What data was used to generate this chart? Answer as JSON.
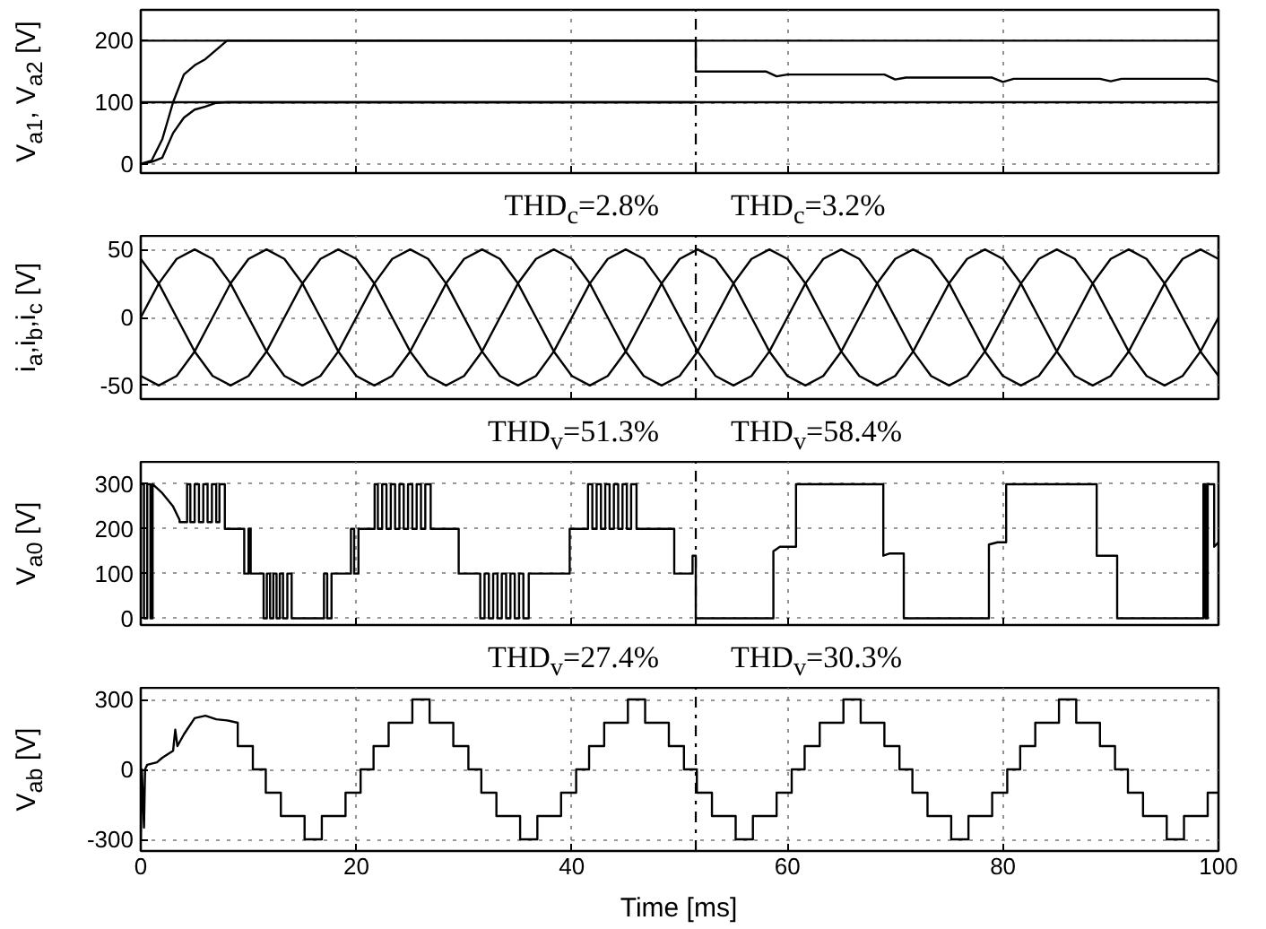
{
  "chart_data": [
    {
      "type": "line",
      "ylabel": "V$_{a1}$, V$_{a2}$ [V]",
      "xlim": [
        0,
        100
      ],
      "xticks": [
        0,
        20,
        40,
        60,
        80,
        100
      ],
      "ylim": [
        -15,
        250
      ],
      "yticks": [
        0,
        100,
        200
      ],
      "grid": true,
      "tick_labels": "y",
      "series": [
        {
          "color": "#000000",
          "x": [
            0,
            1,
            2,
            3,
            4,
            5,
            6,
            7,
            8,
            20,
            30,
            40,
            51.5,
            51.5,
            58,
            59,
            60,
            69,
            70,
            71,
            79,
            80,
            81,
            89,
            90,
            91,
            99,
            100
          ],
          "values": [
            0,
            5,
            40,
            100,
            145,
            160,
            170,
            185,
            200,
            200,
            200,
            200,
            200,
            150,
            150,
            142,
            145,
            145,
            137,
            140,
            140,
            133,
            138,
            138,
            134,
            138,
            138,
            133
          ]
        },
        {
          "color": "#000000",
          "x": [
            0,
            1,
            2,
            3,
            4,
            5,
            6,
            7,
            8,
            20,
            30,
            40,
            51.5
          ],
          "values": [
            0,
            3,
            10,
            50,
            75,
            88,
            93,
            99,
            100,
            100,
            100,
            100,
            100
          ]
        },
        {
          "color": "#000000",
          "x": [
            0,
            100
          ],
          "values": [
            100,
            100
          ]
        },
        {
          "color": "#000000",
          "x": [
            0,
            100
          ],
          "values": [
            200,
            200
          ]
        }
      ],
      "ref_lines": [
        {
          "axis": "x",
          "value": 51.5,
          "color": "#000000",
          "line_style": "dashdot"
        }
      ],
      "annotations": [
        "THD$_{c}$=2.8%",
        "THD$_{c}$=3.2%"
      ]
    },
    {
      "type": "line",
      "ylabel": "i$_{a}$,i$_{b}$,i$_{c}$ [V]",
      "xlim": [
        0,
        100
      ],
      "xticks": [
        0,
        20,
        40,
        60,
        80,
        100
      ],
      "ylim": [
        -60,
        60
      ],
      "yticks": [
        -50,
        0,
        50
      ],
      "grid": true,
      "tick_labels": "y",
      "series": [
        {
          "color": "#000000",
          "x": [
            0,
            1.67,
            3.33,
            5,
            6.67,
            8.33,
            10,
            11.67,
            13.33,
            15,
            16.67,
            18.33,
            20,
            21.67,
            23.33,
            25,
            26.67,
            28.33,
            30,
            31.67,
            33.33,
            35,
            36.67,
            38.33,
            40,
            41.67,
            43.33,
            45,
            46.67,
            48.33,
            50,
            51.67,
            53.33,
            55,
            56.67,
            58.33,
            60,
            61.67,
            63.33,
            65,
            66.67,
            68.33,
            70,
            71.67,
            73.33,
            75,
            76.67,
            78.33,
            80,
            81.67,
            83.33,
            85,
            86.67,
            88.33,
            90,
            91.67,
            93.33,
            95,
            96.67,
            98.33,
            100
          ],
          "values": [
            0,
            25,
            43,
            50,
            43,
            25,
            0,
            -25,
            -43,
            -50,
            -43,
            -25,
            0,
            25,
            43,
            50,
            43,
            25,
            0,
            -25,
            -43,
            -50,
            -43,
            -25,
            0,
            25,
            43,
            50,
            43,
            25,
            0,
            -25,
            -43,
            -50,
            -43,
            -25,
            0,
            25,
            43,
            50,
            43,
            25,
            0,
            -25,
            -43,
            -50,
            -43,
            -25,
            0,
            25,
            43,
            50,
            43,
            25,
            0,
            -25,
            -43,
            -50,
            -43,
            -25,
            0
          ]
        },
        {
          "color": "#000000",
          "x": [
            0,
            1.67,
            3.33,
            5,
            6.67,
            8.33,
            10,
            11.67,
            13.33,
            15,
            16.67,
            18.33,
            20,
            21.67,
            23.33,
            25,
            26.67,
            28.33,
            30,
            31.67,
            33.33,
            35,
            36.67,
            38.33,
            40,
            41.67,
            43.33,
            45,
            46.67,
            48.33,
            50,
            51.67,
            53.33,
            55,
            56.67,
            58.33,
            60,
            61.67,
            63.33,
            65,
            66.67,
            68.33,
            70,
            71.67,
            73.33,
            75,
            76.67,
            78.33,
            80,
            81.67,
            83.33,
            85,
            86.67,
            88.33,
            90,
            91.67,
            93.33,
            95,
            96.67,
            98.33,
            100
          ],
          "values": [
            -43,
            -50,
            -43,
            -25,
            0,
            25,
            43,
            50,
            43,
            25,
            0,
            -25,
            -43,
            -50,
            -43,
            -25,
            0,
            25,
            43,
            50,
            43,
            25,
            0,
            -25,
            -43,
            -50,
            -43,
            -25,
            0,
            25,
            43,
            50,
            43,
            25,
            0,
            -25,
            -43,
            -50,
            -43,
            -25,
            0,
            25,
            43,
            50,
            43,
            25,
            0,
            -25,
            -43,
            -50,
            -43,
            -25,
            0,
            25,
            43,
            50,
            43,
            25,
            0,
            -25,
            -43
          ]
        },
        {
          "color": "#000000",
          "x": [
            0,
            1.67,
            3.33,
            5,
            6.67,
            8.33,
            10,
            11.67,
            13.33,
            15,
            16.67,
            18.33,
            20,
            21.67,
            23.33,
            25,
            26.67,
            28.33,
            30,
            31.67,
            33.33,
            35,
            36.67,
            38.33,
            40,
            41.67,
            43.33,
            45,
            46.67,
            48.33,
            50,
            51.67,
            53.33,
            55,
            56.67,
            58.33,
            60,
            61.67,
            63.33,
            65,
            66.67,
            68.33,
            70,
            71.67,
            73.33,
            75,
            76.67,
            78.33,
            80,
            81.67,
            83.33,
            85,
            86.67,
            88.33,
            90,
            91.67,
            93.33,
            95,
            96.67,
            98.33,
            100
          ],
          "values": [
            43,
            25,
            0,
            -25,
            -43,
            -50,
            -43,
            -25,
            0,
            25,
            43,
            50,
            43,
            25,
            0,
            -25,
            -43,
            -50,
            -43,
            -25,
            0,
            25,
            43,
            50,
            43,
            25,
            0,
            -25,
            -43,
            -50,
            -43,
            -25,
            0,
            25,
            43,
            50,
            43,
            25,
            0,
            -25,
            -43,
            -50,
            -43,
            -25,
            0,
            25,
            43,
            50,
            43,
            25,
            0,
            -25,
            -43,
            -50,
            -43,
            -25,
            0,
            25,
            43,
            50,
            43
          ]
        }
      ],
      "ref_lines": [
        {
          "axis": "x",
          "value": 51.5,
          "color": "#000000",
          "line_style": "dashdot"
        }
      ],
      "annotations": [
        "THD$_{v}$=51.3%",
        "THD$_{v}$=58.4%"
      ]
    },
    {
      "type": "line",
      "ylabel": "V$_{a0}$ [V]",
      "xlim": [
        0,
        100
      ],
      "xticks": [
        0,
        20,
        40,
        60,
        80,
        100
      ],
      "ylim": [
        -15,
        350
      ],
      "yticks": [
        0,
        100,
        200,
        300
      ],
      "grid": true,
      "tick_labels": "y",
      "series": [
        {
          "color": "#000000",
          "x": [
            0,
            0,
            0.3,
            0.3,
            0.6,
            0.6,
            0.9,
            0.9,
            1.1,
            1.1,
            2,
            3,
            3.6,
            3.6,
            4.3,
            4.3,
            4.6,
            4.6,
            5,
            5,
            5.4,
            5.4,
            5.8,
            5.8,
            6.2,
            6.2,
            6.6,
            6.6,
            7,
            7,
            7.3,
            7.3,
            7.8,
            7.8,
            9.6,
            9.6,
            10,
            10,
            10.2,
            10.2,
            11.4,
            11.4,
            11.7,
            11.7,
            12,
            12,
            12.3,
            12.3,
            12.6,
            12.6,
            12.9,
            12.9,
            13.2,
            13.2,
            13.6,
            13.6,
            14,
            14,
            17,
            17,
            17.3,
            17.3,
            17.7,
            17.7,
            19.5,
            19.5,
            19.8,
            19.8,
            20.2,
            20.2,
            21.7,
            21.7,
            22,
            22,
            22.4,
            22.4,
            22.8,
            22.8,
            23.2,
            23.2,
            23.6,
            23.6,
            24,
            24,
            24.4,
            24.4,
            24.8,
            24.8,
            25.2,
            25.2,
            25.6,
            25.6,
            26,
            26,
            26.4,
            26.4,
            26.9,
            26.9,
            29.5,
            29.5,
            31.5,
            31.5,
            31.9,
            31.9,
            32.3,
            32.3,
            32.7,
            32.7,
            33.1,
            33.1,
            33.5,
            33.5,
            33.9,
            33.9,
            34.3,
            34.3,
            34.7,
            34.7,
            35.1,
            35.1,
            35.5,
            35.5,
            36,
            36,
            39.8,
            39.8,
            41.5,
            41.5,
            41.9,
            41.9,
            42.3,
            42.3,
            42.7,
            42.7,
            43.1,
            43.1,
            43.5,
            43.5,
            43.9,
            43.9,
            44.3,
            44.3,
            44.7,
            44.7,
            45.1,
            45.1,
            45.5,
            45.5,
            46,
            46,
            49.5,
            49.5,
            51.2,
            51.2,
            51.5,
            51.5,
            58.7,
            58.7,
            59.3,
            60.8,
            60.8,
            68.9,
            68.9,
            69.5,
            70.8,
            70.8,
            78.7,
            78.7,
            79.5,
            80.3,
            80.3,
            88.7,
            88.7,
            90.6,
            90.6,
            98.6,
            98.6,
            98.8,
            98.8,
            99,
            99,
            99.6,
            99.6,
            100
          ],
          "values": [
            0,
            300,
            300,
            0,
            0,
            300,
            300,
            0,
            0,
            300,
            280,
            250,
            220,
            215,
            215,
            300,
            300,
            215,
            215,
            300,
            300,
            215,
            215,
            300,
            300,
            215,
            215,
            300,
            300,
            215,
            215,
            300,
            300,
            200,
            200,
            100,
            100,
            200,
            200,
            100,
            100,
            0,
            0,
            100,
            100,
            0,
            0,
            100,
            100,
            0,
            0,
            100,
            100,
            0,
            0,
            100,
            100,
            0,
            0,
            100,
            100,
            0,
            0,
            100,
            100,
            200,
            200,
            100,
            100,
            200,
            200,
            300,
            300,
            200,
            200,
            300,
            300,
            200,
            200,
            300,
            300,
            200,
            200,
            300,
            300,
            200,
            200,
            300,
            300,
            200,
            200,
            300,
            300,
            200,
            200,
            300,
            300,
            200,
            200,
            100,
            100,
            0,
            0,
            100,
            100,
            0,
            0,
            100,
            100,
            0,
            0,
            100,
            100,
            0,
            0,
            100,
            100,
            0,
            0,
            100,
            100,
            0,
            0,
            100,
            100,
            200,
            200,
            300,
            300,
            200,
            200,
            300,
            300,
            200,
            200,
            300,
            300,
            200,
            200,
            300,
            300,
            200,
            200,
            300,
            300,
            200,
            200,
            300,
            300,
            200,
            200,
            100,
            100,
            140,
            140,
            0,
            0,
            150,
            160,
            160,
            300,
            300,
            140,
            145,
            145,
            0,
            0,
            165,
            170,
            170,
            300,
            300,
            140,
            140,
            0,
            0,
            300,
            300,
            0,
            0,
            300,
            300,
            160,
            170
          ]
        }
      ],
      "ref_lines": [
        {
          "axis": "x",
          "value": 51.5,
          "color": "#000000",
          "line_style": "dashdot"
        }
      ],
      "annotations": [
        "THD$_{v}$=27.4%",
        "THD$_{v}$=30.3%"
      ]
    },
    {
      "type": "line",
      "xlabel": "Time [ms]",
      "ylabel": "V$_{ab}$ [V]",
      "xlim": [
        0,
        100
      ],
      "xticks": [
        0,
        20,
        40,
        60,
        80,
        100
      ],
      "ylim": [
        -350,
        350
      ],
      "yticks": [
        -300,
        0,
        300
      ],
      "grid": true,
      "series": [
        {
          "color": "#000000",
          "x": [
            0,
            0.1,
            0.3,
            0.4,
            0.6,
            1.5,
            2,
            3,
            3.2,
            3.4,
            4,
            5,
            6,
            7,
            8,
            9,
            9,
            10.4,
            10.4,
            11.6,
            11.6,
            13,
            13,
            15.2,
            15.2,
            16.8,
            16.8,
            19,
            19,
            20.4,
            20.4,
            21.6,
            21.6,
            23,
            23,
            25.2,
            25.2,
            26.8,
            26.8,
            29,
            29,
            30.4,
            30.4,
            31.6,
            31.6,
            33,
            33,
            35.2,
            35.2,
            36.8,
            36.8,
            39,
            39,
            40.4,
            40.4,
            41.6,
            41.6,
            43,
            43,
            45.2,
            45.2,
            46.8,
            46.8,
            49,
            49,
            50.4,
            50.4,
            51.6,
            51.6,
            53,
            53,
            55.2,
            55.2,
            56.8,
            56.8,
            59,
            59,
            60.4,
            60.4,
            61.6,
            61.6,
            63,
            63,
            65.2,
            65.2,
            66.8,
            66.8,
            69,
            69,
            70.4,
            70.4,
            71.6,
            71.6,
            73,
            73,
            75.2,
            75.2,
            76.8,
            76.8,
            79,
            79,
            80.4,
            80.4,
            81.6,
            81.6,
            83,
            83,
            85.2,
            85.2,
            86.8,
            86.8,
            89,
            89,
            90.4,
            90.4,
            91.6,
            91.6,
            93,
            93,
            95.2,
            95.2,
            96.8,
            96.8,
            99,
            99,
            100
          ],
          "values": [
            -300,
            0,
            -250,
            0,
            20,
            30,
            50,
            80,
            170,
            100,
            150,
            220,
            230,
            215,
            210,
            200,
            100,
            100,
            0,
            0,
            -100,
            -100,
            -200,
            -200,
            -300,
            -300,
            -200,
            -200,
            -100,
            -100,
            0,
            0,
            100,
            100,
            200,
            200,
            300,
            300,
            200,
            200,
            100,
            100,
            0,
            0,
            -100,
            -100,
            -200,
            -200,
            -300,
            -300,
            -200,
            -200,
            -100,
            -100,
            0,
            0,
            100,
            100,
            200,
            200,
            300,
            300,
            200,
            200,
            100,
            100,
            0,
            0,
            -100,
            -100,
            -200,
            -200,
            -300,
            -300,
            -200,
            -200,
            -100,
            -100,
            0,
            0,
            100,
            100,
            200,
            200,
            300,
            300,
            200,
            200,
            100,
            100,
            0,
            0,
            -100,
            -100,
            -200,
            -200,
            -300,
            -300,
            -200,
            -200,
            -100,
            -100,
            0,
            0,
            100,
            100,
            200,
            200,
            300,
            300,
            200,
            200,
            100,
            100,
            0,
            0,
            -100,
            -100,
            -200,
            -200,
            -300,
            -300,
            -200,
            -200,
            -100,
            -100
          ]
        }
      ],
      "ref_lines": [
        {
          "axis": "x",
          "value": 51.5,
          "color": "#000000",
          "line_style": "dashdot"
        }
      ]
    }
  ]
}
